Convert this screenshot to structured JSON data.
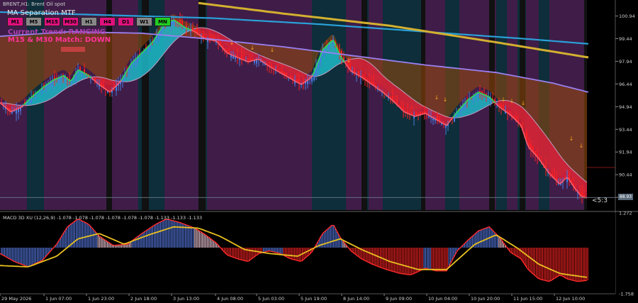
{
  "header": {
    "symbol": "BRENT,H1: Brent Oil spot"
  },
  "indicator": {
    "title": "MA Separation MTF",
    "timeframes": [
      {
        "label": "M1",
        "color": "#e0107e"
      },
      {
        "label": "M5",
        "color": "#888888"
      },
      {
        "label": "M15",
        "color": "#e0107e"
      },
      {
        "label": "M30",
        "color": "#e0107e"
      },
      {
        "label": "H1",
        "color": "#888888"
      },
      {
        "label": "H4",
        "color": "#e0107e"
      },
      {
        "label": "D1",
        "color": "#e0107e"
      },
      {
        "label": "W1",
        "color": "#888888"
      },
      {
        "label": "MN",
        "color": "#22cc22"
      }
    ],
    "trend_text": "Current Trend: RANGING",
    "match_text": "M15 & M30 Match: DOWN",
    "trend_color": "#b040b0",
    "match_color": "#ff3399"
  },
  "ratio_label": "<5:3",
  "last_price_label": "88.93",
  "macd_title": "MACD 3D XU (12,26,9) -1.078 -1.078 -1.078 -1.078 -1.078 -1.078 -1.133 -1.133 -1.133",
  "colors": {
    "background": "#000000",
    "zone_purple": "#3f1d48",
    "zone_teal": "#0d2e3a",
    "ribbon_up": "#1fb8c8",
    "ribbon_down": "#d8203c",
    "band_orange": "#9a4a0a",
    "ma_violet": "#9980f0",
    "ma_blue": "#2aa0d8",
    "ma_gold": "#d4b030",
    "hist_up": "#5577dd",
    "hist_down": "#ee2222",
    "signal": "#e8c020"
  },
  "chart_data": [
    {
      "type": "candlestick",
      "title": "BRENT,H1: Brent Oil spot",
      "y_ticks": [
        100.94,
        99.44,
        97.94,
        96.44,
        94.94,
        93.44,
        91.94,
        90.44,
        88.94
      ],
      "ylim": [
        88.1,
        102.0
      ],
      "x_ticks": [
        "29 May 2026",
        "1 Jun 07:00",
        "1 Jun 23:00",
        "2 Jun 18:00",
        "3 Jun 13:00",
        "4 Jun 08:00",
        "5 Jun 03:00",
        "5 Jun 19:00",
        "8 Jun 14:00",
        "9 Jun 09:00",
        "10 Jun 04:00",
        "10 Jun 20:00",
        "11 Jun 15:00",
        "12 Jun 10:00"
      ],
      "price_path": [
        [
          0,
          95.2
        ],
        [
          15,
          94.6
        ],
        [
          30,
          94.9
        ],
        [
          45,
          95.6
        ],
        [
          60,
          96.2
        ],
        [
          75,
          96.7
        ],
        [
          90,
          97.0
        ],
        [
          100,
          96.6
        ],
        [
          110,
          97.4
        ],
        [
          125,
          97.0
        ],
        [
          140,
          96.4
        ],
        [
          155,
          95.9
        ],
        [
          170,
          96.6
        ],
        [
          185,
          97.8
        ],
        [
          200,
          98.5
        ],
        [
          215,
          99.2
        ],
        [
          230,
          100.3
        ],
        [
          245,
          100.7
        ],
        [
          260,
          100.2
        ],
        [
          275,
          99.9
        ],
        [
          290,
          99.4
        ],
        [
          305,
          99.3
        ],
        [
          320,
          98.5
        ],
        [
          335,
          98.2
        ],
        [
          350,
          97.9
        ],
        [
          365,
          98.1
        ],
        [
          380,
          97.6
        ],
        [
          395,
          97.2
        ],
        [
          410,
          96.8
        ],
        [
          425,
          96.4
        ],
        [
          440,
          96.9
        ],
        [
          455,
          98.7
        ],
        [
          470,
          99.4
        ],
        [
          480,
          98.3
        ],
        [
          495,
          97.3
        ],
        [
          510,
          96.9
        ],
        [
          525,
          96.4
        ],
        [
          540,
          95.9
        ],
        [
          555,
          95.3
        ],
        [
          570,
          94.6
        ],
        [
          585,
          94.3
        ],
        [
          600,
          94.5
        ],
        [
          615,
          94.1
        ],
        [
          630,
          93.7
        ],
        [
          645,
          94.6
        ],
        [
          660,
          95.4
        ],
        [
          675,
          95.9
        ],
        [
          690,
          95.6
        ],
        [
          705,
          94.9
        ],
        [
          720,
          94.4
        ],
        [
          735,
          93.7
        ],
        [
          745,
          92.3
        ],
        [
          760,
          91.5
        ],
        [
          775,
          90.5
        ],
        [
          790,
          89.8
        ],
        [
          800,
          90.3
        ],
        [
          810,
          89.6
        ],
        [
          820,
          89.0
        ],
        [
          828,
          88.9
        ]
      ],
      "ma_violet": [
        [
          0,
          99.6
        ],
        [
          100,
          99.9
        ],
        [
          200,
          99.8
        ],
        [
          300,
          99.4
        ],
        [
          400,
          98.9
        ],
        [
          500,
          98.3
        ],
        [
          600,
          97.7
        ],
        [
          700,
          97.2
        ],
        [
          780,
          96.5
        ],
        [
          830,
          95.9
        ]
      ],
      "ma_blue": [
        [
          0,
          101.2
        ],
        [
          150,
          101.0
        ],
        [
          300,
          100.8
        ],
        [
          450,
          100.4
        ],
        [
          600,
          99.9
        ],
        [
          750,
          99.4
        ],
        [
          830,
          99.1
        ]
      ],
      "ma_gold": [
        [
          280,
          101.8
        ],
        [
          400,
          101.1
        ],
        [
          550,
          100.3
        ],
        [
          700,
          99.2
        ],
        [
          830,
          98.2
        ]
      ],
      "series": [
        {
          "name": "MA Separation MTF",
          "values": []
        }
      ]
    },
    {
      "type": "bar",
      "title": "MACD 3D XU (12,26,9)",
      "ylim": [
        -1.758,
        1.272
      ],
      "y_ticks": [
        1.272,
        -1.758
      ],
      "macd_path": [
        [
          0,
          -0.25
        ],
        [
          20,
          -0.55
        ],
        [
          40,
          -0.75
        ],
        [
          60,
          -0.5
        ],
        [
          80,
          0.1
        ],
        [
          95,
          0.75
        ],
        [
          110,
          1.05
        ],
        [
          125,
          0.85
        ],
        [
          140,
          0.4
        ],
        [
          160,
          0.05
        ],
        [
          180,
          0.1
        ],
        [
          200,
          0.5
        ],
        [
          220,
          0.85
        ],
        [
          235,
          1.05
        ],
        [
          255,
          0.9
        ],
        [
          275,
          0.7
        ],
        [
          290,
          0.45
        ],
        [
          305,
          0.15
        ],
        [
          320,
          -0.3
        ],
        [
          335,
          -0.45
        ],
        [
          350,
          -0.55
        ],
        [
          365,
          -0.25
        ],
        [
          380,
          -0.15
        ],
        [
          395,
          -0.25
        ],
        [
          410,
          -0.45
        ],
        [
          425,
          -0.55
        ],
        [
          440,
          -0.2
        ],
        [
          455,
          0.5
        ],
        [
          470,
          0.85
        ],
        [
          480,
          0.35
        ],
        [
          495,
          -0.15
        ],
        [
          510,
          -0.45
        ],
        [
          525,
          -0.65
        ],
        [
          545,
          -0.85
        ],
        [
          565,
          -1.0
        ],
        [
          580,
          -1.05
        ],
        [
          600,
          -0.8
        ],
        [
          615,
          -0.9
        ],
        [
          630,
          -0.9
        ],
        [
          645,
          -0.15
        ],
        [
          660,
          0.25
        ],
        [
          675,
          0.6
        ],
        [
          690,
          0.75
        ],
        [
          705,
          0.35
        ],
        [
          720,
          -0.2
        ],
        [
          735,
          -0.45
        ],
        [
          745,
          -0.85
        ],
        [
          760,
          -1.2
        ],
        [
          775,
          -1.3
        ],
        [
          790,
          -1.05
        ],
        [
          800,
          -1.2
        ],
        [
          815,
          -1.3
        ],
        [
          830,
          -1.25
        ]
      ],
      "signal_path": [
        [
          0,
          -0.7
        ],
        [
          40,
          -0.75
        ],
        [
          80,
          -0.35
        ],
        [
          110,
          0.3
        ],
        [
          140,
          0.5
        ],
        [
          175,
          0.1
        ],
        [
          210,
          0.45
        ],
        [
          245,
          0.75
        ],
        [
          280,
          0.7
        ],
        [
          310,
          0.4
        ],
        [
          345,
          -0.1
        ],
        [
          380,
          -0.25
        ],
        [
          420,
          -0.35
        ],
        [
          450,
          0.05
        ],
        [
          480,
          0.3
        ],
        [
          510,
          -0.1
        ],
        [
          550,
          -0.55
        ],
        [
          590,
          -0.85
        ],
        [
          630,
          -0.85
        ],
        [
          670,
          0.1
        ],
        [
          700,
          0.45
        ],
        [
          730,
          -0.05
        ],
        [
          760,
          -0.65
        ],
        [
          790,
          -1.0
        ],
        [
          830,
          -1.15
        ]
      ]
    }
  ]
}
